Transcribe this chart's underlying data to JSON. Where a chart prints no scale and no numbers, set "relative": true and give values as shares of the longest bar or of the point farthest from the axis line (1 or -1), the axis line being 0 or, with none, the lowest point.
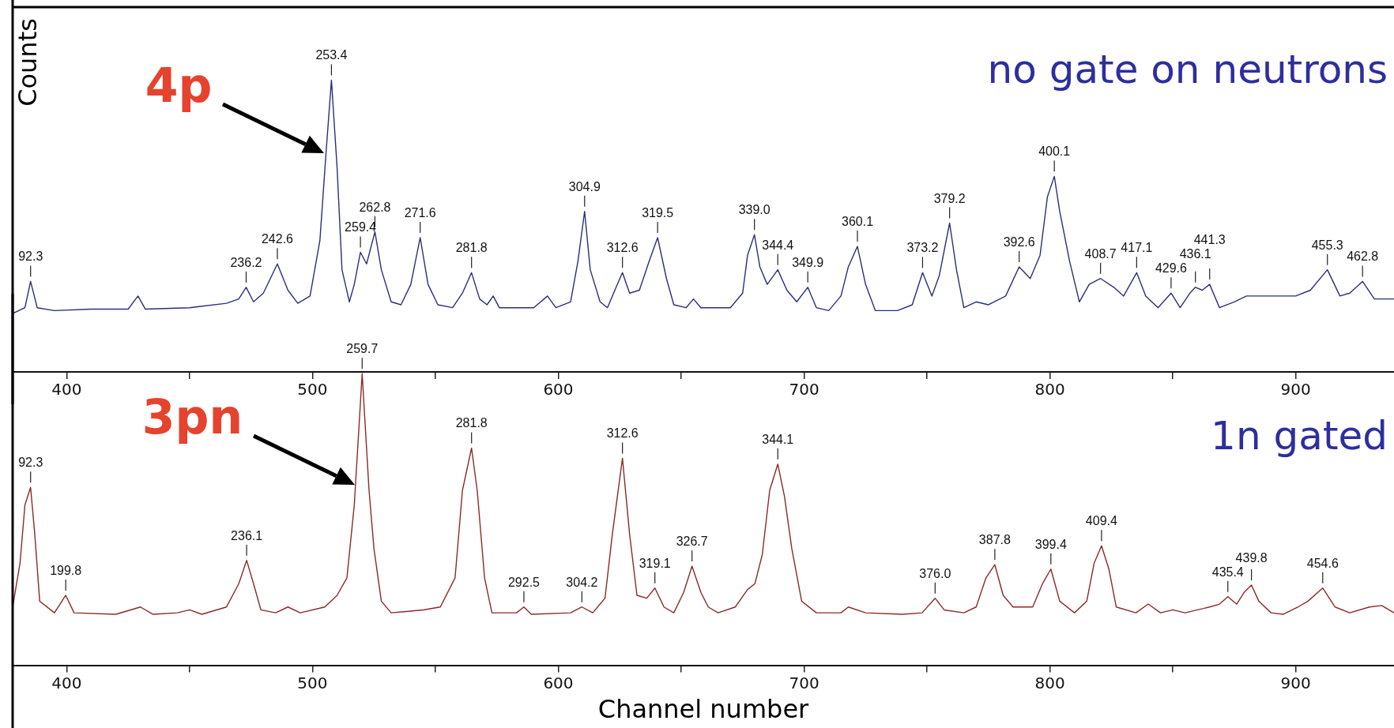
{
  "chart_data": [
    {
      "type": "line",
      "relative": true,
      "ylabel": "Counts",
      "xlim": [
        378,
        940
      ],
      "xticks": [
        400,
        {
          "value": 450,
          "label": null
        },
        500,
        {
          "value": 550,
          "label": null
        },
        600,
        {
          "value": 650,
          "label": null
        },
        700,
        {
          "value": 750,
          "label": null
        },
        800,
        {
          "value": 850,
          "label": null
        },
        900
      ],
      "marker": "none",
      "legend": false,
      "annotations": [
        "no gate on neutrons",
        {
          "text": "4p",
          "x": 504.8,
          "y": 0.75
        },
        {
          "text": "92.3",
          "x": 385.3,
          "y": 0.31
        },
        {
          "text": "236.2",
          "x": 473,
          "y": 0.29
        },
        {
          "text": "242.6",
          "x": 485.7,
          "y": 0.37
        },
        {
          "text": "253.4",
          "x": 507.7,
          "y": 1.0
        },
        {
          "text": "259.4",
          "x": 519.5,
          "y": 0.41
        },
        {
          "text": "262.8",
          "x": 525.4,
          "y": 0.48
        },
        {
          "text": "271.6",
          "x": 543.8,
          "y": 0.46
        },
        {
          "text": "281.8",
          "x": 564.7,
          "y": 0.34
        },
        {
          "text": "304.9",
          "x": 610.7,
          "y": 0.55
        },
        {
          "text": "312.6",
          "x": 626.1,
          "y": 0.34
        },
        {
          "text": "319.5",
          "x": 640.4,
          "y": 0.46
        },
        {
          "text": "339.0",
          "x": 679.8,
          "y": 0.47
        },
        {
          "text": "344.4",
          "x": 689.3,
          "y": 0.35
        },
        {
          "text": "349.9",
          "x": 701.5,
          "y": 0.29
        },
        {
          "text": "360.1",
          "x": 721.7,
          "y": 0.43
        },
        {
          "text": "373.2",
          "x": 748.2,
          "y": 0.34
        },
        {
          "text": "379.2",
          "x": 759.2,
          "y": 0.51
        },
        {
          "text": "392.6",
          "x": 787.5,
          "y": 0.36
        },
        {
          "text": "400.1",
          "x": 801.8,
          "y": 0.67
        },
        {
          "text": "408.7",
          "x": 820.6,
          "y": 0.32
        },
        {
          "text": "417.1",
          "x": 835.3,
          "y": 0.34
        },
        {
          "text": "429.6",
          "x": 849.3,
          "y": 0.27
        },
        {
          "text": "436.1",
          "x": 859.2,
          "y": 0.29
        },
        {
          "text": "441.3",
          "x": 865,
          "y": 0.3
        },
        {
          "text": "455.3",
          "x": 912.9,
          "y": 0.35
        },
        {
          "text": "462.8",
          "x": 927.2,
          "y": 0.31
        }
      ],
      "x": [
        378,
        383,
        385.3,
        388,
        395,
        410,
        425,
        429,
        432,
        450,
        465,
        470,
        473,
        476,
        480,
        485.7,
        490,
        494,
        499,
        503,
        505.5,
        507.7,
        510,
        512,
        515,
        517,
        519.5,
        522,
        525.4,
        528,
        532,
        536,
        540,
        543.8,
        547,
        551,
        557,
        561,
        564.7,
        568,
        571,
        573.5,
        576,
        590,
        595.6,
        599,
        605,
        608,
        610.7,
        613,
        617,
        620,
        623,
        626.1,
        629,
        633,
        637,
        640.4,
        644,
        647,
        652,
        655,
        658,
        670,
        675,
        677,
        679.8,
        682,
        685,
        689.3,
        693,
        697,
        701.5,
        705,
        710,
        715,
        718,
        721.7,
        725,
        729,
        738,
        744,
        748.2,
        752,
        755,
        759.2,
        762,
        765,
        770,
        775,
        782,
        787.5,
        792,
        796,
        799,
        801.8,
        804,
        808,
        812,
        816,
        820.6,
        826,
        830,
        835.3,
        839,
        844,
        849.3,
        853,
        857,
        859.2,
        862,
        865,
        869,
        875,
        880,
        890,
        900,
        906,
        912.9,
        918,
        922,
        927.2,
        932,
        940
      ],
      "series": [
        {
          "color": "#2b2f7a",
          "values": [
            0.2,
            0.22,
            0.31,
            0.22,
            0.21,
            0.215,
            0.215,
            0.26,
            0.215,
            0.22,
            0.235,
            0.25,
            0.29,
            0.24,
            0.27,
            0.37,
            0.28,
            0.235,
            0.26,
            0.45,
            0.75,
            1.0,
            0.7,
            0.35,
            0.24,
            0.3,
            0.41,
            0.37,
            0.48,
            0.35,
            0.24,
            0.23,
            0.3,
            0.46,
            0.3,
            0.23,
            0.22,
            0.27,
            0.34,
            0.25,
            0.23,
            0.26,
            0.22,
            0.22,
            0.26,
            0.22,
            0.24,
            0.38,
            0.55,
            0.35,
            0.24,
            0.22,
            0.28,
            0.34,
            0.27,
            0.28,
            0.38,
            0.46,
            0.32,
            0.23,
            0.22,
            0.25,
            0.22,
            0.22,
            0.27,
            0.4,
            0.47,
            0.36,
            0.3,
            0.35,
            0.28,
            0.24,
            0.29,
            0.22,
            0.21,
            0.26,
            0.36,
            0.43,
            0.3,
            0.21,
            0.21,
            0.23,
            0.34,
            0.26,
            0.33,
            0.51,
            0.35,
            0.22,
            0.24,
            0.23,
            0.26,
            0.36,
            0.32,
            0.4,
            0.6,
            0.67,
            0.55,
            0.38,
            0.24,
            0.3,
            0.32,
            0.29,
            0.26,
            0.34,
            0.26,
            0.22,
            0.27,
            0.22,
            0.27,
            0.29,
            0.28,
            0.3,
            0.22,
            0.24,
            0.26,
            0.26,
            0.26,
            0.28,
            0.35,
            0.26,
            0.27,
            0.31,
            0.25,
            0.25
          ]
        }
      ]
    },
    {
      "type": "line",
      "relative": true,
      "xlabel": "Channel number",
      "xlim": [
        378,
        940
      ],
      "xticks": [
        400,
        {
          "value": 450,
          "label": null
        },
        500,
        {
          "value": 550,
          "label": null
        },
        600,
        {
          "value": 650,
          "label": null
        },
        700,
        {
          "value": 750,
          "label": null
        },
        800,
        {
          "value": 850,
          "label": null
        },
        900
      ],
      "marker": "none",
      "legend": false,
      "annotations": [
        "1n gated",
        {
          "text": "3pn",
          "x": 517.3,
          "y": 0.62
        },
        {
          "text": "92.3",
          "x": 385.3,
          "y": 0.61
        },
        {
          "text": "199.8",
          "x": 399.6,
          "y": 0.24
        },
        {
          "text": "236.1",
          "x": 473.2,
          "y": 0.36
        },
        {
          "text": "259.7",
          "x": 520.2,
          "y": 1.0
        },
        {
          "text": "281.8",
          "x": 564.7,
          "y": 0.745
        },
        {
          "text": "292.5",
          "x": 586,
          "y": 0.2
        },
        {
          "text": "304.2",
          "x": 609.6,
          "y": 0.2
        },
        {
          "text": "312.6",
          "x": 626.1,
          "y": 0.71
        },
        {
          "text": "319.1",
          "x": 639.3,
          "y": 0.265
        },
        {
          "text": "326.7",
          "x": 654.4,
          "y": 0.34
        },
        {
          "text": "344.1",
          "x": 689.3,
          "y": 0.69
        },
        {
          "text": "376.0",
          "x": 753.3,
          "y": 0.23
        },
        {
          "text": "387.8",
          "x": 777.6,
          "y": 0.345
        },
        {
          "text": "399.4",
          "x": 800.4,
          "y": 0.33
        },
        {
          "text": "409.4",
          "x": 821,
          "y": 0.41
        },
        {
          "text": "435.4",
          "x": 872.4,
          "y": 0.235
        },
        {
          "text": "439.8",
          "x": 882,
          "y": 0.275
        },
        {
          "text": "454.6",
          "x": 911,
          "y": 0.265
        }
      ],
      "x": [
        378,
        381,
        383,
        385.3,
        387,
        389,
        395,
        399.6,
        403,
        420,
        430,
        435,
        445,
        450,
        455,
        465,
        470,
        473.2,
        476,
        479,
        485,
        490,
        495,
        505,
        510,
        514,
        517,
        520.2,
        523,
        525,
        528,
        532,
        545,
        552,
        558,
        561,
        564.7,
        567,
        570,
        573,
        583,
        586,
        589,
        605,
        609.6,
        614,
        619,
        622,
        626.1,
        629,
        632,
        636,
        639.3,
        643,
        647,
        651,
        654.4,
        658,
        661,
        665,
        672,
        677,
        680,
        683,
        686,
        689.3,
        692,
        695,
        699,
        705,
        715,
        718,
        725,
        740,
        748,
        753.3,
        757,
        765,
        770,
        774,
        777.6,
        781,
        785,
        793,
        797,
        800.4,
        804,
        810,
        815,
        818,
        821,
        824,
        827,
        835,
        840,
        845,
        850,
        855,
        865,
        869,
        872.4,
        876,
        879,
        882,
        885,
        890,
        895,
        901,
        905,
        911,
        916,
        922,
        930,
        935,
        940
      ],
      "series": [
        {
          "color": "#8b2a2a",
          "values": [
            0.2,
            0.35,
            0.55,
            0.61,
            0.45,
            0.22,
            0.18,
            0.24,
            0.18,
            0.175,
            0.2,
            0.175,
            0.18,
            0.19,
            0.175,
            0.2,
            0.28,
            0.36,
            0.28,
            0.19,
            0.18,
            0.2,
            0.18,
            0.2,
            0.24,
            0.3,
            0.55,
            1.0,
            0.6,
            0.4,
            0.22,
            0.18,
            0.19,
            0.2,
            0.3,
            0.6,
            0.745,
            0.6,
            0.3,
            0.18,
            0.18,
            0.2,
            0.175,
            0.18,
            0.2,
            0.18,
            0.23,
            0.45,
            0.71,
            0.45,
            0.24,
            0.23,
            0.265,
            0.2,
            0.18,
            0.25,
            0.34,
            0.25,
            0.2,
            0.18,
            0.2,
            0.26,
            0.28,
            0.38,
            0.6,
            0.69,
            0.58,
            0.4,
            0.22,
            0.18,
            0.18,
            0.2,
            0.18,
            0.175,
            0.18,
            0.23,
            0.19,
            0.18,
            0.2,
            0.3,
            0.345,
            0.24,
            0.2,
            0.2,
            0.28,
            0.33,
            0.22,
            0.18,
            0.22,
            0.35,
            0.41,
            0.33,
            0.2,
            0.18,
            0.21,
            0.18,
            0.19,
            0.18,
            0.2,
            0.21,
            0.235,
            0.21,
            0.25,
            0.275,
            0.22,
            0.18,
            0.175,
            0.2,
            0.22,
            0.265,
            0.2,
            0.18,
            0.2,
            0.205,
            0.18
          ]
        }
      ]
    }
  ]
}
